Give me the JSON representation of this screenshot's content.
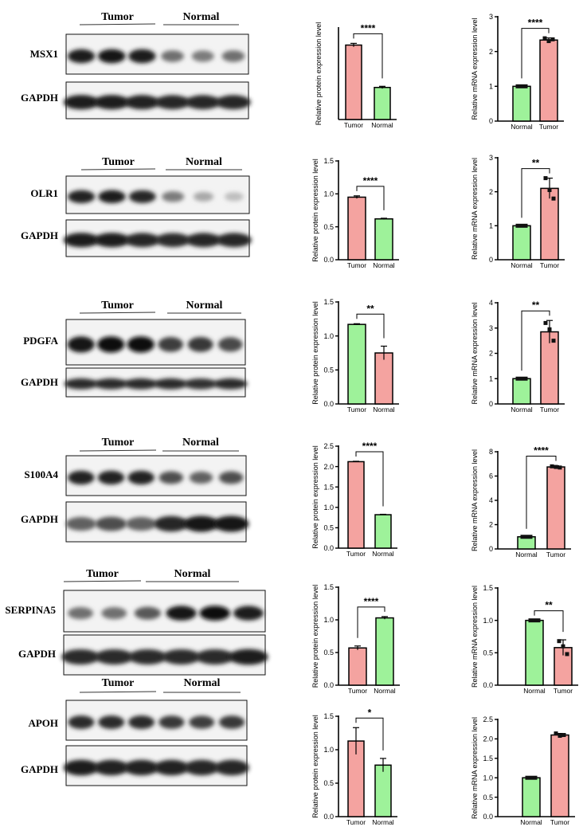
{
  "colors": {
    "tumor": "#F4A3A0",
    "normal": "#9EF29A",
    "stroke": "#000000"
  },
  "panels": [
    {
      "gene": "MSX1",
      "loading": "GAPDH",
      "blot": {
        "group_labels": [
          "Tumor",
          "Normal"
        ],
        "target_intensity": [
          0.92,
          0.95,
          0.93,
          0.55,
          0.5,
          0.55
        ],
        "gapdh_intensity": [
          0.92,
          0.92,
          0.9,
          0.88,
          0.88,
          0.88
        ]
      }
    },
    {
      "gene": "OLR1",
      "loading": "GAPDH",
      "blot": {
        "group_labels": [
          "Tumor",
          "Normal"
        ],
        "target_intensity": [
          0.9,
          0.92,
          0.88,
          0.5,
          0.3,
          0.2
        ],
        "gapdh_intensity": [
          0.92,
          0.92,
          0.88,
          0.85,
          0.88,
          0.88
        ]
      }
    },
    {
      "gene": "PDGFA",
      "loading": "GAPDH",
      "blot": {
        "group_labels": [
          "Tumor",
          "Normal"
        ],
        "target_intensity": [
          0.95,
          0.97,
          0.97,
          0.78,
          0.8,
          0.72
        ],
        "gapdh_intensity": [
          0.85,
          0.85,
          0.85,
          0.85,
          0.82,
          0.85
        ]
      }
    },
    {
      "gene": "S100A4",
      "loading": "GAPDH",
      "blot": {
        "group_labels": [
          "Tumor",
          "Normal"
        ],
        "target_intensity": [
          0.9,
          0.9,
          0.9,
          0.7,
          0.62,
          0.7
        ],
        "gapdh_intensity": [
          0.62,
          0.7,
          0.62,
          0.88,
          0.95,
          0.95
        ]
      }
    },
    {
      "gene": "SERPINA5",
      "loading": "GAPDH",
      "blot": {
        "group_labels": [
          "Tumor",
          "Normal"
        ],
        "target_intensity": [
          0.55,
          0.55,
          0.65,
          0.95,
          0.97,
          0.92
        ],
        "gapdh_intensity": [
          0.85,
          0.85,
          0.85,
          0.85,
          0.85,
          0.92
        ]
      }
    },
    {
      "gene": "APOH",
      "loading": "GAPDH",
      "blot": {
        "group_labels": [
          "Tumor",
          "Normal"
        ],
        "target_intensity": [
          0.85,
          0.85,
          0.85,
          0.8,
          0.78,
          0.8
        ],
        "gapdh_intensity": [
          0.92,
          0.9,
          0.9,
          0.9,
          0.88,
          0.88
        ]
      }
    }
  ],
  "chart_data": [
    {
      "id": "protein-msx1",
      "type": "bar",
      "ylabel": "Relative protein expression level",
      "ylim": [
        0,
        0.8
      ],
      "yticks": [],
      "categories": [
        "Tumor",
        "Normal"
      ],
      "values": [
        0.65,
        0.28
      ],
      "errors": [
        0.015,
        0.01
      ],
      "points": [],
      "bar_colors": [
        "tumor",
        "normal"
      ],
      "significance": "****"
    },
    {
      "id": "mrna-msx1",
      "type": "bar",
      "ylabel": "Relative mRNA expression level",
      "ylim": [
        0,
        3
      ],
      "yticks": [
        "0",
        "1",
        "2",
        "3"
      ],
      "categories": [
        "Normal",
        "Tumor"
      ],
      "values": [
        1.0,
        2.33
      ],
      "errors": [
        0,
        0.06
      ],
      "points": [
        [
          1,
          1,
          1
        ],
        [
          2.38,
          2.3,
          2.35
        ]
      ],
      "bar_colors": [
        "normal",
        "tumor"
      ],
      "significance": "****"
    },
    {
      "id": "protein-olr1",
      "type": "bar",
      "ylabel": "Relative protein expression level",
      "ylim": [
        0,
        1.5
      ],
      "yticks": [
        "0.0",
        "0.5",
        "1.0",
        "1.5"
      ],
      "categories": [
        "Tumor",
        "Normal"
      ],
      "values": [
        0.95,
        0.62
      ],
      "errors": [
        0.02,
        0.01
      ],
      "points": [],
      "bar_colors": [
        "tumor",
        "normal"
      ],
      "significance": "****"
    },
    {
      "id": "mrna-olr1",
      "type": "bar",
      "ylabel": "Relative mRNA expression level",
      "ylim": [
        0,
        3
      ],
      "yticks": [
        "0",
        "1",
        "2",
        "3"
      ],
      "categories": [
        "Normal",
        "Tumor"
      ],
      "values": [
        1.0,
        2.1
      ],
      "errors": [
        0,
        0.3
      ],
      "points": [
        [
          1,
          1,
          1
        ],
        [
          2.4,
          2.05,
          1.8
        ]
      ],
      "bar_colors": [
        "normal",
        "tumor"
      ],
      "significance": "**"
    },
    {
      "id": "protein-pdgfa",
      "type": "bar",
      "ylabel": "Relative protein expression level",
      "ylim": [
        0,
        1.5
      ],
      "yticks": [
        "0.0",
        "0.5",
        "1.0",
        "1.5"
      ],
      "categories": [
        "Tumor",
        "Normal"
      ],
      "values": [
        1.17,
        0.75
      ],
      "errors": [
        0.01,
        0.1
      ],
      "points": [],
      "bar_colors": [
        "normal",
        "tumor"
      ],
      "significance": "**"
    },
    {
      "id": "mrna-pdgfa",
      "type": "bar",
      "ylabel": "Relative mRNA expression level",
      "ylim": [
        0,
        4
      ],
      "yticks": [
        "0",
        "1",
        "2",
        "3",
        "4"
      ],
      "categories": [
        "Normal",
        "Tumor"
      ],
      "values": [
        1.0,
        2.85
      ],
      "errors": [
        0,
        0.45
      ],
      "points": [
        [
          1,
          1,
          1
        ],
        [
          3.2,
          2.95,
          2.5
        ]
      ],
      "bar_colors": [
        "normal",
        "tumor"
      ],
      "significance": "**"
    },
    {
      "id": "protein-s100a4",
      "type": "bar",
      "ylabel": "Relative protein expression level",
      "ylim": [
        0,
        2.5
      ],
      "yticks": [
        "0.0",
        "0.5",
        "1.0",
        "1.5",
        "2.0",
        "2.5"
      ],
      "categories": [
        "Tumor",
        "Normal"
      ],
      "values": [
        2.12,
        0.82
      ],
      "errors": [
        0.01,
        0.01
      ],
      "points": [],
      "bar_colors": [
        "tumor",
        "normal"
      ],
      "significance": "****"
    },
    {
      "id": "mrna-s100a4",
      "type": "bar",
      "ylabel": "Relative mRNA expression level",
      "ylim": [
        0,
        8
      ],
      "yticks": [
        "0",
        "2",
        "4",
        "6",
        "8"
      ],
      "categories": [
        "Normal",
        "Tumor"
      ],
      "values": [
        1.0,
        6.75
      ],
      "errors": [
        0,
        0.1
      ],
      "points": [
        [
          1,
          1,
          1
        ],
        [
          6.8,
          6.75,
          6.7
        ]
      ],
      "bar_colors": [
        "normal",
        "tumor"
      ],
      "significance": "****"
    },
    {
      "id": "protein-serpina5",
      "type": "bar",
      "ylabel": "Relative protein expression level",
      "ylim": [
        0,
        1.5
      ],
      "yticks": [
        "0.0",
        "0.5",
        "1.0",
        "1.5"
      ],
      "categories": [
        "Tumor",
        "Normal"
      ],
      "values": [
        0.57,
        1.03
      ],
      "errors": [
        0.03,
        0.02
      ],
      "points": [],
      "bar_colors": [
        "tumor",
        "normal"
      ],
      "significance": "****"
    },
    {
      "id": "mrna-serpina5",
      "type": "bar",
      "ylabel": "Relative mRNA expression level",
      "ylim": [
        0,
        1.5
      ],
      "yticks": [
        "0.0",
        "0.5",
        "1.0",
        "1.5"
      ],
      "categories": [
        "Normal",
        "Tumor"
      ],
      "values": [
        1.0,
        0.58
      ],
      "errors": [
        0,
        0.12
      ],
      "points": [
        [
          1,
          1,
          1
        ],
        [
          0.68,
          0.6,
          0.48
        ]
      ],
      "bar_colors": [
        "normal",
        "tumor"
      ],
      "significance": "**"
    },
    {
      "id": "protein-apoh",
      "type": "bar",
      "ylabel": "Relative protein expression level",
      "ylim": [
        0,
        1.5
      ],
      "yticks": [
        "0.0",
        "0.5",
        "1.0",
        "1.5"
      ],
      "categories": [
        "Tumor",
        "Normal"
      ],
      "values": [
        1.13,
        0.77
      ],
      "errors": [
        0.2,
        0.1
      ],
      "points": [],
      "bar_colors": [
        "tumor",
        "normal"
      ],
      "significance": "*"
    },
    {
      "id": "mrna-apoh",
      "type": "bar",
      "ylabel": "Relative mRNA expression level",
      "ylim": [
        0,
        2.5
      ],
      "yticks": [
        "0.0",
        "0.5",
        "1.0",
        "1.5",
        "2.0",
        "2.5"
      ],
      "categories": [
        "Normal",
        "Tumor"
      ],
      "values": [
        1.0,
        2.1
      ],
      "errors": [
        0,
        0.04
      ],
      "points": [
        [
          1,
          1,
          1
        ],
        [
          2.14,
          2.08,
          2.1
        ]
      ],
      "bar_colors": [
        "normal",
        "tumor"
      ],
      "significance": ""
    }
  ]
}
